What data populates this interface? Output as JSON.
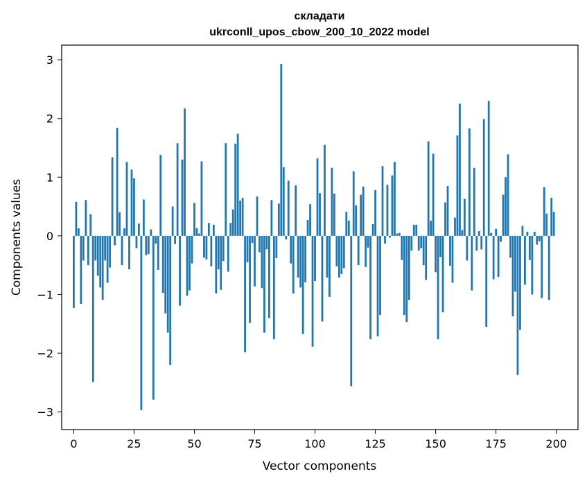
{
  "chart_data": {
    "type": "bar",
    "title_line1": "складати",
    "title_line2": "ukrconll_upos_cbow_200_10_2022 model",
    "xlabel": "Vector components",
    "ylabel": "Components values",
    "xlim": [
      -5,
      209
    ],
    "ylim": [
      -3.3,
      3.25
    ],
    "x_ticks": [
      0,
      25,
      50,
      75,
      100,
      125,
      150,
      175,
      200
    ],
    "x_tick_labels": [
      "0",
      "25",
      "50",
      "75",
      "100",
      "125",
      "150",
      "175",
      "200"
    ],
    "y_ticks": [
      3,
      2,
      1,
      0,
      -1,
      -2,
      -3
    ],
    "y_tick_labels": [
      "3",
      "2",
      "1",
      "0",
      "−1",
      "−2",
      "−3"
    ],
    "bar_color": "#1f77b4",
    "values": [
      -1.23,
      0.58,
      0.13,
      -1.16,
      -0.42,
      0.61,
      -0.5,
      0.37,
      -2.49,
      -0.42,
      -0.68,
      -0.88,
      -1.09,
      -0.42,
      -0.8,
      -0.54,
      1.34,
      -0.16,
      1.84,
      0.4,
      -0.5,
      0.13,
      1.26,
      -0.57,
      1.13,
      0.98,
      -0.21,
      0.21,
      -2.97,
      0.62,
      -0.33,
      -0.31,
      0.11,
      -2.79,
      -0.13,
      -0.58,
      1.38,
      -0.97,
      -1.32,
      -1.65,
      -2.2,
      0.5,
      -0.14,
      1.58,
      -1.19,
      1.3,
      2.17,
      -1.02,
      -0.93,
      -0.47,
      0.56,
      0.13,
      0.04,
      1.27,
      -0.37,
      -0.4,
      0.22,
      -0.52,
      0.19,
      -0.98,
      -0.57,
      -0.92,
      -0.43,
      1.58,
      -0.61,
      0.22,
      0.45,
      1.57,
      1.74,
      0.6,
      0.65,
      -1.98,
      -0.45,
      -1.48,
      -0.12,
      -0.86,
      0.67,
      -0.28,
      -0.89,
      -1.65,
      -0.23,
      -1.4,
      0.61,
      -1.76,
      -0.38,
      0.55,
      2.93,
      1.17,
      -0.06,
      0.94,
      -0.47,
      -0.98,
      0.86,
      -0.71,
      -0.88,
      -1.67,
      -0.79,
      0.27,
      0.54,
      -1.89,
      -0.77,
      1.32,
      0.73,
      -1.46,
      1.55,
      -0.71,
      -1.04,
      1.16,
      0.72,
      -0.52,
      -0.71,
      -0.65,
      -0.55,
      0.41,
      0.26,
      -2.56,
      1.1,
      0.52,
      -0.5,
      0.7,
      0.84,
      -0.53,
      -0.2,
      -1.76,
      0.2,
      0.78,
      -1.71,
      -1.35,
      1.19,
      -0.13,
      0.87,
      -0.03,
      1.03,
      1.26,
      0.04,
      0.05,
      -0.41,
      -1.35,
      -1.47,
      -1.09,
      -0.25,
      0.19,
      0.19,
      -0.25,
      -0.21,
      -0.5,
      -0.75,
      1.61,
      0.26,
      1.4,
      -0.62,
      -1.76,
      -0.36,
      -1.3,
      0.57,
      0.85,
      -0.51,
      -0.8,
      0.31,
      1.71,
      2.25,
      0.1,
      0.63,
      -0.42,
      1.83,
      -0.93,
      1.16,
      -0.25,
      0.08,
      -0.23,
      1.99,
      -1.55,
      2.3,
      0.05,
      -0.74,
      0.12,
      -0.7,
      -0.1,
      0.7,
      1.0,
      1.39,
      -0.37,
      -1.37,
      -0.95,
      -2.37,
      -1.6,
      0.17,
      -0.83,
      0.07,
      -0.41,
      -1.0,
      0.07,
      -0.15,
      -0.09,
      -1.06,
      0.83,
      0.38,
      -1.09,
      0.65,
      0.41
    ]
  }
}
